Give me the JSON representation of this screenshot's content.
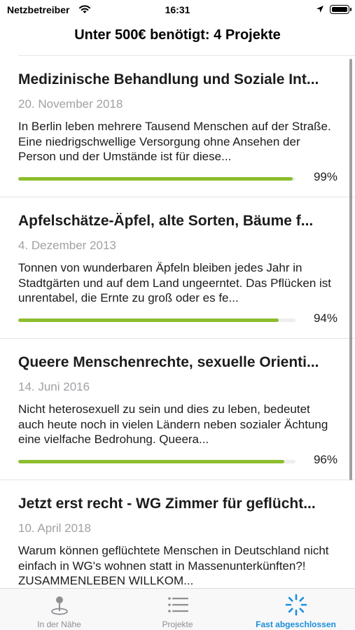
{
  "status_bar": {
    "carrier": "Netzbetreiber",
    "time": "16:31"
  },
  "nav": {
    "title": "Unter 500€ benötigt: 4 Projekte"
  },
  "projects": [
    {
      "title": "Medizinische Behandlung und Soziale Int...",
      "date": "20. November 2018",
      "description": "In Berlin leben mehrere Tausend Menschen auf der Straße. Eine niedrigschwellige Versorgung ohne Ansehen der Person und der Umstände ist für diese...",
      "progress": 0.99,
      "progress_label": "99%"
    },
    {
      "title": "Apfelschätze-Äpfel, alte Sorten, Bäume f...",
      "date": "4. Dezember 2013",
      "description": "Tonnen von wunderbaren Äpfeln bleiben jedes Jahr in Stadtgärten und auf dem Land ungeerntet. Das Pflücken ist unrentabel, die Ernte zu groß oder es fe...",
      "progress": 0.94,
      "progress_label": "94%"
    },
    {
      "title": "Queere Menschenrechte, sexuelle Orienti...",
      "date": "14. Juni 2016",
      "description": "Nicht heterosexuell zu sein und dies zu leben, bedeutet auch heute noch in vielen Ländern neben sozialer Ächtung eine vielfache Bedrohung. Queera...",
      "progress": 0.96,
      "progress_label": "96%"
    },
    {
      "title": "Jetzt erst recht - WG Zimmer für geflücht...",
      "date": "10. April 2018",
      "description": "Warum können geflüchtete Menschen in Deutschland nicht einfach in WG's wohnen statt in Massenunterkünften?! ZUSAMMENLEBEN WILLKOM...",
      "progress": null,
      "progress_label": ""
    }
  ],
  "tabs": [
    {
      "label": "In der Nähe",
      "icon": "map-pin-icon",
      "active": false
    },
    {
      "label": "Projekte",
      "icon": "list-icon",
      "active": false
    },
    {
      "label": "Fast abgeschlossen",
      "icon": "spinner-icon",
      "active": true
    }
  ],
  "colors": {
    "progress_fill": "#8dbd2e",
    "active_tab": "#1c8fdc",
    "inactive_tab": "#8e8e93"
  }
}
